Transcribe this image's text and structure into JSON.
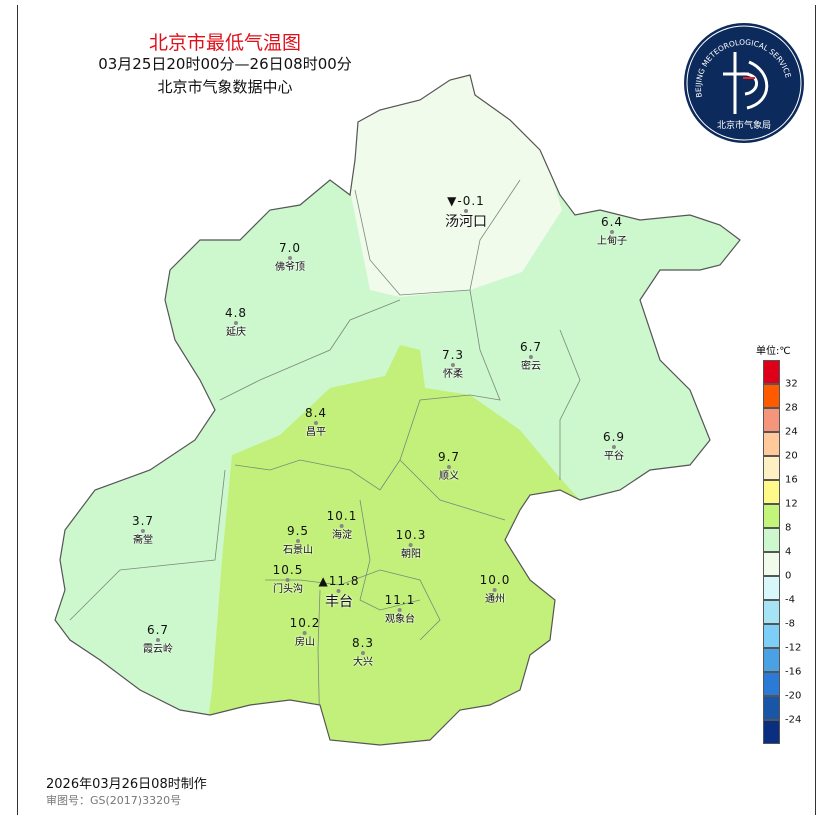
{
  "header": {
    "title": "北京市最低气温图",
    "period": "03月25日20时00分—26日08时00分",
    "source": "北京市气象数据中心"
  },
  "logo": {
    "text_arc": "BEIJING METEOROLOGICAL SERVICE",
    "text_bottom": "北京市气象局",
    "color": "#0d2a5c"
  },
  "stations": [
    {
      "name": "汤河口",
      "value": "-0.1",
      "marker": "▼"
    },
    {
      "name": "上甸子",
      "value": "6.4"
    },
    {
      "name": "佛爷顶",
      "value": "7.0"
    },
    {
      "name": "延庆",
      "value": "4.8"
    },
    {
      "name": "怀柔",
      "value": "7.3"
    },
    {
      "name": "密云",
      "value": "6.7"
    },
    {
      "name": "昌平",
      "value": "8.4"
    },
    {
      "name": "顺义",
      "value": "9.7"
    },
    {
      "name": "平谷",
      "value": "6.9"
    },
    {
      "name": "斋堂",
      "value": "3.7"
    },
    {
      "name": "海淀",
      "value": "10.1"
    },
    {
      "name": "石景山",
      "value": "9.5"
    },
    {
      "name": "门头沟",
      "value": "10.5"
    },
    {
      "name": "丰台",
      "value": "11.8",
      "marker": "▲"
    },
    {
      "name": "朝阳",
      "value": "10.3"
    },
    {
      "name": "通州",
      "value": "10.0"
    },
    {
      "name": "观象台",
      "value": "11.1"
    },
    {
      "name": "房山",
      "value": "10.2"
    },
    {
      "name": "大兴",
      "value": "8.3"
    },
    {
      "name": "霞云岭",
      "value": "6.7"
    }
  ],
  "legend": {
    "unit": "单位:℃",
    "ticks": [
      "32",
      "28",
      "24",
      "20",
      "16",
      "12",
      "8",
      "4",
      "0",
      "-4",
      "-8",
      "-12",
      "-16",
      "-20",
      "-24"
    ],
    "colors": [
      "#dd0018",
      "#ff5a00",
      "#f5957c",
      "#ffc999",
      "#fff0c4",
      "#fff98a",
      "#c2f57a",
      "#cdf7cd",
      "#f1fbeb",
      "#d8f7fa",
      "#a6e4f5",
      "#7dcff7",
      "#4aa2e5",
      "#2a7ad6",
      "#1a56a8",
      "#0a2f80"
    ]
  },
  "zones": {
    "low": "#f1fbeb",
    "mid": "#cdf7cd",
    "high": "#c2f07a"
  },
  "footer": {
    "made": "2026年03月26日08时制作",
    "audit": "审图号：GS(2017)3320号"
  }
}
